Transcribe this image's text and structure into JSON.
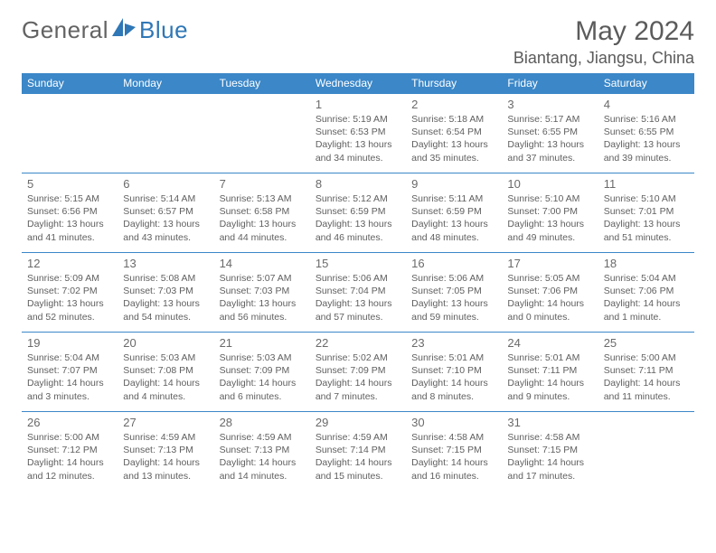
{
  "logo": {
    "part1": "General",
    "part2": "Blue"
  },
  "title": "May 2024",
  "location": "Biantang, Jiangsu, China",
  "colors": {
    "header_bg": "#3b87c8",
    "header_text": "#ffffff",
    "border": "#3b87c8",
    "body_text": "#5f5f5f",
    "title_text": "#5b5b5b",
    "logo_gray": "#636363",
    "logo_blue": "#2f77b6"
  },
  "dayHeaders": [
    "Sunday",
    "Monday",
    "Tuesday",
    "Wednesday",
    "Thursday",
    "Friday",
    "Saturday"
  ],
  "weeks": [
    [
      null,
      null,
      null,
      {
        "n": "1",
        "sr": "5:19 AM",
        "ss": "6:53 PM",
        "dl": "13 hours and 34 minutes."
      },
      {
        "n": "2",
        "sr": "5:18 AM",
        "ss": "6:54 PM",
        "dl": "13 hours and 35 minutes."
      },
      {
        "n": "3",
        "sr": "5:17 AM",
        "ss": "6:55 PM",
        "dl": "13 hours and 37 minutes."
      },
      {
        "n": "4",
        "sr": "5:16 AM",
        "ss": "6:55 PM",
        "dl": "13 hours and 39 minutes."
      }
    ],
    [
      {
        "n": "5",
        "sr": "5:15 AM",
        "ss": "6:56 PM",
        "dl": "13 hours and 41 minutes."
      },
      {
        "n": "6",
        "sr": "5:14 AM",
        "ss": "6:57 PM",
        "dl": "13 hours and 43 minutes."
      },
      {
        "n": "7",
        "sr": "5:13 AM",
        "ss": "6:58 PM",
        "dl": "13 hours and 44 minutes."
      },
      {
        "n": "8",
        "sr": "5:12 AM",
        "ss": "6:59 PM",
        "dl": "13 hours and 46 minutes."
      },
      {
        "n": "9",
        "sr": "5:11 AM",
        "ss": "6:59 PM",
        "dl": "13 hours and 48 minutes."
      },
      {
        "n": "10",
        "sr": "5:10 AM",
        "ss": "7:00 PM",
        "dl": "13 hours and 49 minutes."
      },
      {
        "n": "11",
        "sr": "5:10 AM",
        "ss": "7:01 PM",
        "dl": "13 hours and 51 minutes."
      }
    ],
    [
      {
        "n": "12",
        "sr": "5:09 AM",
        "ss": "7:02 PM",
        "dl": "13 hours and 52 minutes."
      },
      {
        "n": "13",
        "sr": "5:08 AM",
        "ss": "7:03 PM",
        "dl": "13 hours and 54 minutes."
      },
      {
        "n": "14",
        "sr": "5:07 AM",
        "ss": "7:03 PM",
        "dl": "13 hours and 56 minutes."
      },
      {
        "n": "15",
        "sr": "5:06 AM",
        "ss": "7:04 PM",
        "dl": "13 hours and 57 minutes."
      },
      {
        "n": "16",
        "sr": "5:06 AM",
        "ss": "7:05 PM",
        "dl": "13 hours and 59 minutes."
      },
      {
        "n": "17",
        "sr": "5:05 AM",
        "ss": "7:06 PM",
        "dl": "14 hours and 0 minutes."
      },
      {
        "n": "18",
        "sr": "5:04 AM",
        "ss": "7:06 PM",
        "dl": "14 hours and 1 minute."
      }
    ],
    [
      {
        "n": "19",
        "sr": "5:04 AM",
        "ss": "7:07 PM",
        "dl": "14 hours and 3 minutes."
      },
      {
        "n": "20",
        "sr": "5:03 AM",
        "ss": "7:08 PM",
        "dl": "14 hours and 4 minutes."
      },
      {
        "n": "21",
        "sr": "5:03 AM",
        "ss": "7:09 PM",
        "dl": "14 hours and 6 minutes."
      },
      {
        "n": "22",
        "sr": "5:02 AM",
        "ss": "7:09 PM",
        "dl": "14 hours and 7 minutes."
      },
      {
        "n": "23",
        "sr": "5:01 AM",
        "ss": "7:10 PM",
        "dl": "14 hours and 8 minutes."
      },
      {
        "n": "24",
        "sr": "5:01 AM",
        "ss": "7:11 PM",
        "dl": "14 hours and 9 minutes."
      },
      {
        "n": "25",
        "sr": "5:00 AM",
        "ss": "7:11 PM",
        "dl": "14 hours and 11 minutes."
      }
    ],
    [
      {
        "n": "26",
        "sr": "5:00 AM",
        "ss": "7:12 PM",
        "dl": "14 hours and 12 minutes."
      },
      {
        "n": "27",
        "sr": "4:59 AM",
        "ss": "7:13 PM",
        "dl": "14 hours and 13 minutes."
      },
      {
        "n": "28",
        "sr": "4:59 AM",
        "ss": "7:13 PM",
        "dl": "14 hours and 14 minutes."
      },
      {
        "n": "29",
        "sr": "4:59 AM",
        "ss": "7:14 PM",
        "dl": "14 hours and 15 minutes."
      },
      {
        "n": "30",
        "sr": "4:58 AM",
        "ss": "7:15 PM",
        "dl": "14 hours and 16 minutes."
      },
      {
        "n": "31",
        "sr": "4:58 AM",
        "ss": "7:15 PM",
        "dl": "14 hours and 17 minutes."
      },
      null
    ]
  ]
}
